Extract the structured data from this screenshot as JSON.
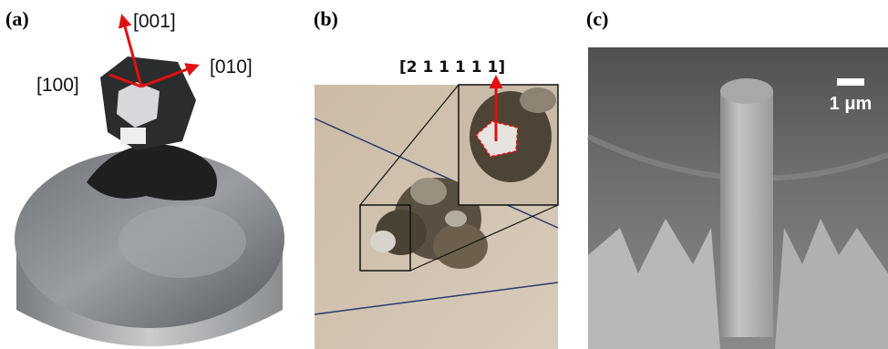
{
  "panels": [
    {
      "label": "(a)",
      "directions": [
        "[001]",
        "[010]",
        "[100]"
      ]
    },
    {
      "label": "(b)",
      "direction": "[2 1 1 1 1 1]"
    },
    {
      "label": "(c)",
      "scale_bar": "1 μm"
    }
  ]
}
